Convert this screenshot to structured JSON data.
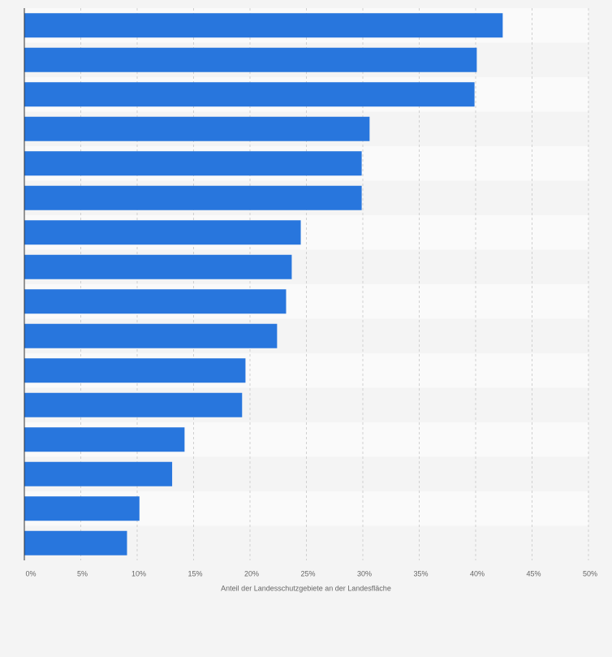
{
  "chart_data": {
    "type": "bar",
    "orientation": "horizontal",
    "x_label": "Anteil der Landesschutzgebiete an der Landesfläche",
    "categories": [
      null,
      null,
      null,
      null,
      null,
      null,
      null,
      null,
      null,
      null,
      null,
      null,
      null,
      null,
      null,
      null
    ],
    "values": [
      42.4,
      40.1,
      39.9,
      30.6,
      29.9,
      29.9,
      24.5,
      23.7,
      23.2,
      22.4,
      19.6,
      19.3,
      14.2,
      13.1,
      10.2,
      9.1
    ],
    "color": "#2876dd",
    "xlim": [
      0,
      50
    ],
    "xticks": [
      {
        "value": 0,
        "label": "0%"
      },
      {
        "value": 5,
        "label": "5%"
      },
      {
        "value": 10,
        "label": "10%"
      },
      {
        "value": 15,
        "label": "15%"
      },
      {
        "value": 20,
        "label": "20%"
      },
      {
        "value": 25,
        "label": "25%"
      },
      {
        "value": 30,
        "label": "30%"
      },
      {
        "value": 35,
        "label": "35%"
      },
      {
        "value": 40,
        "label": "40%"
      },
      {
        "value": 45,
        "label": "45%"
      },
      {
        "value": 50,
        "label": "50%"
      }
    ],
    "grid": true
  }
}
